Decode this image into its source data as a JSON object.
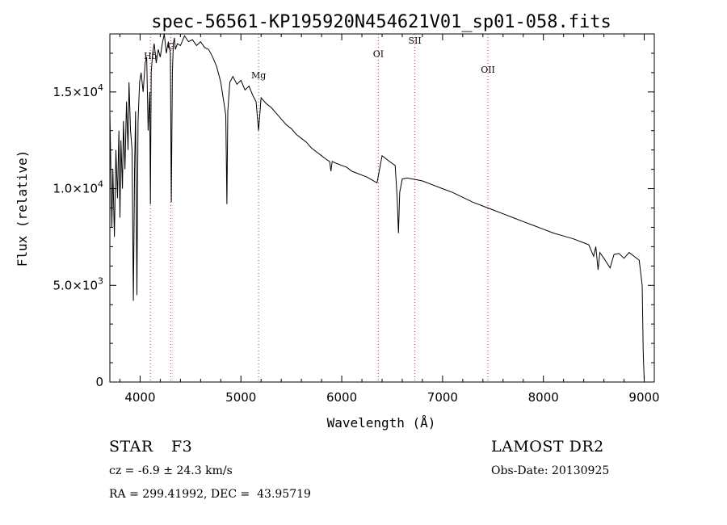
{
  "chart_data": {
    "type": "line",
    "title": "spec-56561-KP195920N454621V01_sp01-058.fits",
    "xlabel": "Wavelength (Å)",
    "ylabel": "Flux (relative)",
    "xlim": [
      3700,
      9100
    ],
    "ylim": [
      0,
      18000
    ],
    "x_ticks": [
      4000,
      5000,
      6000,
      7000,
      8000,
      9000
    ],
    "y_ticks": [
      {
        "value": 0,
        "label": "0"
      },
      {
        "value": 5000,
        "label": "5.0×10",
        "exp": "3"
      },
      {
        "value": 10000,
        "label": "1.0×10",
        "exp": "4"
      },
      {
        "value": 15000,
        "label": "1.5×10",
        "exp": "4"
      }
    ],
    "line_markers": [
      {
        "name": "Hδ",
        "wavelength": 4102,
        "label_flux": 16700
      },
      {
        "name": "G",
        "wavelength": 4305,
        "label_flux": 17200
      },
      {
        "name": "Mg",
        "wavelength": 5175,
        "label_flux": 15700
      },
      {
        "name": "OI",
        "wavelength": 6363,
        "label_flux": 16800
      },
      {
        "name": "SII",
        "wavelength": 6725,
        "label_flux": 17500
      },
      {
        "name": "OII",
        "wavelength": 7450,
        "label_flux": 16000
      }
    ],
    "series": [
      {
        "name": "spectrum",
        "x": [
          3700,
          3720,
          3730,
          3745,
          3760,
          3775,
          3790,
          3800,
          3810,
          3825,
          3835,
          3850,
          3865,
          3880,
          3890,
          3905,
          3920,
          3933,
          3945,
          3955,
          3968,
          3980,
          3995,
          4010,
          4030,
          4050,
          4065,
          4080,
          4095,
          4102,
          4110,
          4125,
          4140,
          4160,
          4180,
          4200,
          4220,
          4240,
          4260,
          4280,
          4300,
          4310,
          4320,
          4330,
          4340,
          4350,
          4370,
          4400,
          4440,
          4480,
          4520,
          4560,
          4600,
          4640,
          4680,
          4720,
          4760,
          4800,
          4830,
          4850,
          4861,
          4870,
          4890,
          4920,
          4960,
          5000,
          5040,
          5080,
          5120,
          5150,
          5175,
          5200,
          5250,
          5300,
          5350,
          5400,
          5450,
          5500,
          5550,
          5600,
          5650,
          5700,
          5750,
          5800,
          5850,
          5880,
          5893,
          5905,
          5950,
          6000,
          6050,
          6100,
          6150,
          6200,
          6250,
          6300,
          6350,
          6400,
          6450,
          6500,
          6530,
          6550,
          6563,
          6575,
          6600,
          6650,
          6700,
          6750,
          6800,
          6900,
          7000,
          7100,
          7200,
          7300,
          7400,
          7500,
          7600,
          7700,
          7800,
          7900,
          8000,
          8100,
          8200,
          8300,
          8400,
          8450,
          8498,
          8520,
          8542,
          8560,
          8600,
          8662,
          8700,
          8750,
          8800,
          8850,
          8900,
          8950,
          8980,
          8990,
          9000
        ],
        "values": [
          14000,
          8000,
          11000,
          7500,
          12000,
          9500,
          13000,
          8500,
          12500,
          10000,
          13500,
          11000,
          14500,
          12000,
          15500,
          13000,
          12000,
          4200,
          11000,
          14000,
          4500,
          13500,
          15500,
          16000,
          15000,
          16500,
          16800,
          13000,
          15000,
          9200,
          16000,
          17000,
          17500,
          16500,
          17200,
          16800,
          17500,
          18000,
          17000,
          17600,
          17000,
          9300,
          16000,
          17500,
          17800,
          17200,
          17500,
          17400,
          17900,
          17600,
          17700,
          17400,
          17600,
          17300,
          17200,
          16800,
          16300,
          15500,
          14500,
          13800,
          9200,
          14000,
          15500,
          15800,
          15400,
          15600,
          15100,
          15300,
          14800,
          14500,
          13000,
          14700,
          14400,
          14200,
          13900,
          13600,
          13300,
          13100,
          12800,
          12600,
          12400,
          12100,
          11900,
          11700,
          11500,
          11400,
          10900,
          11400,
          11300,
          11200,
          11100,
          10900,
          10800,
          10700,
          10600,
          10450,
          10300,
          11700,
          11500,
          11300,
          11200,
          9500,
          7700,
          9800,
          10500,
          10550,
          10500,
          10450,
          10400,
          10200,
          10000,
          9800,
          9550,
          9300,
          9100,
          8900,
          8700,
          8500,
          8300,
          8100,
          7900,
          7700,
          7550,
          7400,
          7200,
          7100,
          6500,
          7000,
          5800,
          6700,
          6400,
          5900,
          6600,
          6650,
          6400,
          6700,
          6500,
          6300,
          5000,
          1500,
          100
        ]
      }
    ]
  },
  "info": {
    "object_class": "STAR",
    "subclass": "F3",
    "survey": "LAMOST DR2",
    "cz": "cz = -6.9 ± 24.3 km/s",
    "obs_date": "Obs-Date: 20130925",
    "coords": "RA = 299.41992, DEC =  43.95719"
  }
}
